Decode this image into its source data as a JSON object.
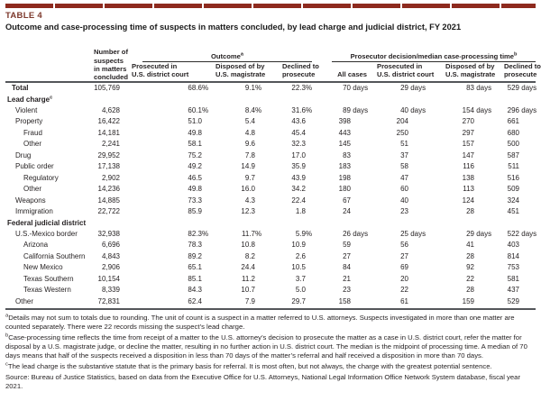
{
  "page": {
    "table_tag": "TABLE 4",
    "title": "Outcome and case-processing time of suspects in matters concluded, by lead charge and judicial district, FY 2021",
    "accent_color": "#8e2a1e",
    "rule_color": "#54565a"
  },
  "header": {
    "concluded": "Number of\nsuspects\nin matters\nconcluded",
    "groups": [
      {
        "label": "Outcome",
        "sup": "a"
      },
      {
        "label": "Prosecutor decision/median case-processing time",
        "sup": "b"
      }
    ],
    "outcome_cols": [
      "Prosecuted in\nU.S. district court",
      "Disposed of by\nU.S. magistrate",
      "Declined to\nprosecute"
    ],
    "decision_cols": [
      "All cases",
      "Prosecuted in\nU.S. district court",
      "Disposed of by\nU.S. magistrate",
      "Declined to\nprosecute"
    ]
  },
  "rows": [
    {
      "label": "Total",
      "sup": "",
      "type": "total",
      "cells": [
        "105,769",
        "68.6%",
        "9.1%",
        "22.3%",
        "70 days",
        "29 days",
        "83 days",
        "529 days"
      ]
    },
    {
      "label": "Lead charge",
      "sup": "c",
      "type": "section",
      "cells": []
    },
    {
      "label": "Violent",
      "sup": "",
      "type": "l1",
      "cells": [
        "4,628",
        "60.1%",
        "8.4%",
        "31.6%",
        "89 days",
        "40 days",
        "154 days",
        "296 days"
      ]
    },
    {
      "label": "Property",
      "sup": "",
      "type": "l1",
      "cells": [
        "16,422",
        "51.0",
        "5.4",
        "43.6",
        "398",
        "204",
        "270",
        "661"
      ]
    },
    {
      "label": "Fraud",
      "sup": "",
      "type": "l2",
      "cells": [
        "14,181",
        "49.8",
        "4.8",
        "45.4",
        "443",
        "250",
        "297",
        "680"
      ]
    },
    {
      "label": "Other",
      "sup": "",
      "type": "l2",
      "cells": [
        "2,241",
        "58.1",
        "9.6",
        "32.3",
        "145",
        "51",
        "157",
        "500"
      ]
    },
    {
      "label": "Drug",
      "sup": "",
      "type": "l1",
      "cells": [
        "29,952",
        "75.2",
        "7.8",
        "17.0",
        "83",
        "37",
        "147",
        "587"
      ]
    },
    {
      "label": "Public order",
      "sup": "",
      "type": "l1",
      "cells": [
        "17,138",
        "49.2",
        "14.9",
        "35.9",
        "183",
        "58",
        "116",
        "511"
      ]
    },
    {
      "label": "Regulatory",
      "sup": "",
      "type": "l2",
      "cells": [
        "2,902",
        "46.5",
        "9.7",
        "43.9",
        "198",
        "47",
        "138",
        "516"
      ]
    },
    {
      "label": "Other",
      "sup": "",
      "type": "l2",
      "cells": [
        "14,236",
        "49.8",
        "16.0",
        "34.2",
        "180",
        "60",
        "113",
        "509"
      ]
    },
    {
      "label": "Weapons",
      "sup": "",
      "type": "l1",
      "cells": [
        "14,885",
        "73.3",
        "4.3",
        "22.4",
        "67",
        "40",
        "124",
        "324"
      ]
    },
    {
      "label": "Immigration",
      "sup": "",
      "type": "l1",
      "cells": [
        "22,722",
        "85.9",
        "12.3",
        "1.8",
        "24",
        "23",
        "28",
        "451"
      ]
    },
    {
      "label": "Federal judicial district",
      "sup": "",
      "type": "section",
      "cells": []
    },
    {
      "label": "U.S.-Mexico border",
      "sup": "",
      "type": "l1",
      "cells": [
        "32,938",
        "82.3%",
        "11.7%",
        "5.9%",
        "26 days",
        "25 days",
        "29 days",
        "522 days"
      ]
    },
    {
      "label": "Arizona",
      "sup": "",
      "type": "l2",
      "cells": [
        "6,696",
        "78.3",
        "10.8",
        "10.9",
        "59",
        "56",
        "41",
        "403"
      ]
    },
    {
      "label": "California Southern",
      "sup": "",
      "type": "l2",
      "cells": [
        "4,843",
        "89.2",
        "8.2",
        "2.6",
        "27",
        "27",
        "28",
        "814"
      ]
    },
    {
      "label": "New Mexico",
      "sup": "",
      "type": "l2",
      "cells": [
        "2,906",
        "65.1",
        "24.4",
        "10.5",
        "84",
        "69",
        "92",
        "753"
      ]
    },
    {
      "label": "Texas Southern",
      "sup": "",
      "type": "l2",
      "cells": [
        "10,154",
        "85.1",
        "11.2",
        "3.7",
        "21",
        "20",
        "22",
        "581"
      ]
    },
    {
      "label": "Texas Western",
      "sup": "",
      "type": "l2",
      "cells": [
        "8,339",
        "84.3",
        "10.7",
        "5.0",
        "23",
        "22",
        "28",
        "437"
      ]
    },
    {
      "label": "Other",
      "sup": "",
      "type": "l1",
      "cells": [
        "72,831",
        "62.4",
        "7.9",
        "29.7",
        "158",
        "61",
        "159",
        "529"
      ]
    }
  ],
  "footnotes": [
    {
      "sup": "a",
      "text": "Details may not sum to totals due to rounding. The unit of count is a suspect in a matter referred to U.S. attorneys. Suspects investigated in more than one matter are counted separately. There were 22 records missing the suspect’s lead charge."
    },
    {
      "sup": "b",
      "text": "Case-processing time reflects the time from receipt of a matter to the U.S. attorney’s decision to prosecute the matter as a case in U.S. district court, refer the matter for disposal by a U.S. magistrate judge, or decline the matter, resulting in no further action in U.S. district court. The median is the midpoint of processing time. A median of 70 days means that half of the suspects received a disposition in less than 70 days of the matter’s referral and half received a disposition in more than 70 days."
    },
    {
      "sup": "c",
      "text": "The lead charge is the substantive statute that is the primary basis for referral. It is most often, but not always, the charge with the greatest potential sentence."
    },
    {
      "sup": "",
      "text": "Source: Bureau of Justice Statistics, based on data from the Executive Office for U.S. Attorneys, National Legal Information Office Network System database, fiscal year 2021."
    }
  ]
}
